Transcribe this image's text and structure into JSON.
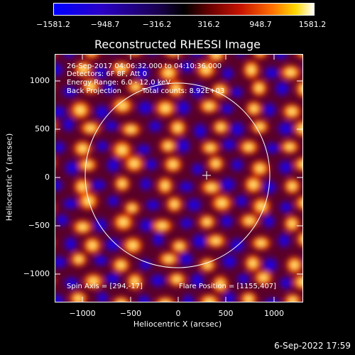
{
  "colorbar": {
    "tick_labels": [
      "−1581.2",
      "−948.7",
      "−316.2",
      "316.2",
      "948.7",
      "1581.2"
    ]
  },
  "plot": {
    "title": "Reconstructed RHESSI Image",
    "xlabel": "Heliocentric X (arcsec)",
    "ylabel": "Heliocentric Y (arcsec)",
    "x_tick_labels": [
      "−1000",
      "−500",
      "0",
      "500",
      "1000"
    ],
    "y_tick_labels": [
      "1000",
      "500",
      "0",
      "−500",
      "−1000"
    ],
    "xlim": [
      -1280,
      1280
    ],
    "ylim": [
      -1280,
      1280
    ]
  },
  "annotations": {
    "time_range": "26-Sep-2017 04:06:32.000 to 04:10:36.000",
    "detectors": "Detectors: 6F 8F, Att 0",
    "energy_range": "Energy Range: 6.0 - 12.0 keV",
    "method": "Back Projection",
    "total_counts": "Total counts: 8.92E+03",
    "spin_axis": "Spin Axis = [294,-17]",
    "flare_position": "Flare Position = [1155,407]"
  },
  "footer": {
    "date": "6-Sep-2022 17:59"
  },
  "colors": {
    "background": "#000000",
    "colormap": [
      "#0000ff",
      "#3a00aa",
      "#000000",
      "#8a0000",
      "#ff3000",
      "#ffcc00",
      "#ffffff"
    ]
  }
}
